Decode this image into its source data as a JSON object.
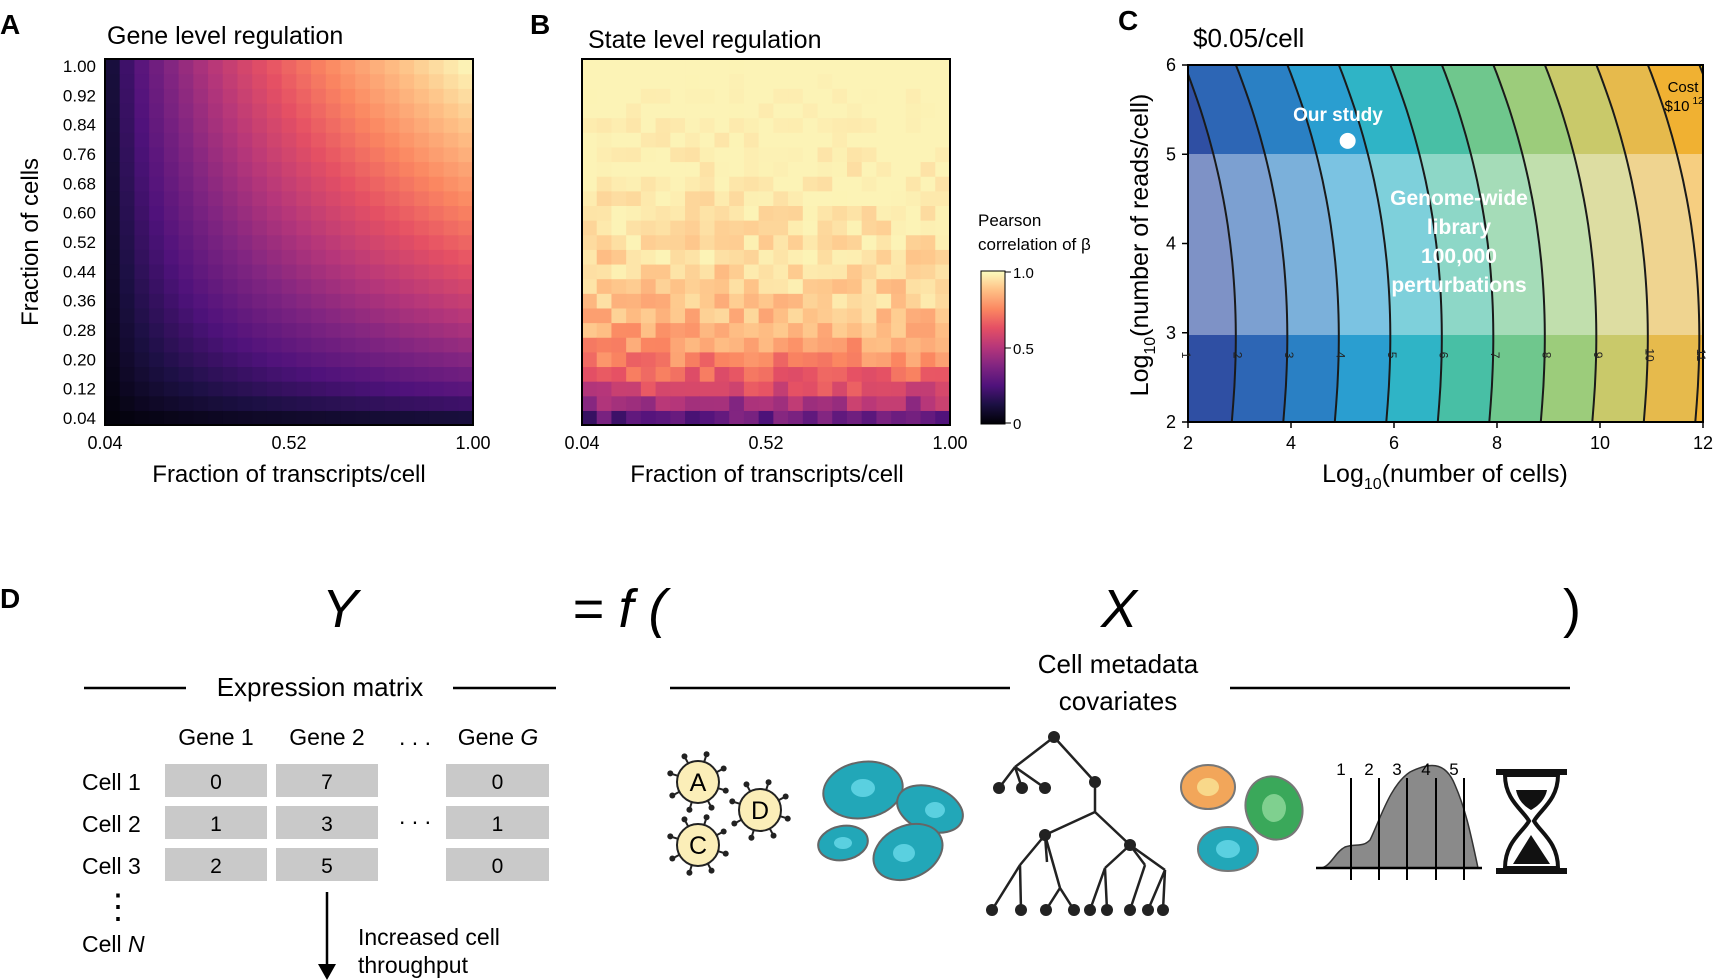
{
  "panels": {
    "A": {
      "letter": "A",
      "title": "Gene level regulation"
    },
    "B": {
      "letter": "B",
      "title": "State level regulation"
    },
    "C": {
      "letter": "C",
      "title": "$0.05/cell"
    },
    "D": {
      "letter": "D"
    }
  },
  "chart_data": [
    {
      "type": "heatmap",
      "panel": "A",
      "title": "Gene level regulation",
      "xlabel": "Fraction of transcripts/cell",
      "ylabel": "Fraction of cells",
      "x_ticks": [
        "0.04",
        "0.52",
        "1.00"
      ],
      "y_ticks": [
        "1.00",
        "0.92",
        "0.84",
        "0.76",
        "0.68",
        "0.60",
        "0.52",
        "0.44",
        "0.36",
        "0.28",
        "0.20",
        "0.12",
        "0.04"
      ],
      "x_range": [
        0.04,
        1.0
      ],
      "y_range": [
        0.04,
        1.0
      ],
      "grid_size": 25,
      "colormap": "magma",
      "value_range": [
        0,
        1.0
      ],
      "pattern": "correlation increases with both fraction of transcripts and fraction of cells; near 0 at (0.04,0.04), ~1.0 at (1.00,1.00)"
    },
    {
      "type": "heatmap",
      "panel": "B",
      "title": "State level regulation",
      "xlabel": "Fraction of transcripts/cell",
      "ylabel": "Fraction of cells",
      "x_ticks": [
        "0.04",
        "0.52",
        "1.00"
      ],
      "x_range": [
        0.04,
        1.0
      ],
      "y_range": [
        0.04,
        1.0
      ],
      "grid_size": 25,
      "colormap": "magma",
      "value_range": [
        0,
        1.0
      ],
      "pattern": "correlation mostly determined by fraction of cells; high (>0.9) above ~0.5 fraction of cells, dropping to ~0.3 at lowest fraction",
      "colorbar": {
        "label_line1": "Pearson",
        "label_line2": "correlation of β",
        "ticks": [
          "1.0",
          "0.5",
          "0"
        ]
      }
    },
    {
      "type": "heatmap",
      "panel": "C",
      "title": "$0.05/cell",
      "xlabel": "Log10(number of cells)",
      "ylabel": "Log10(number of reads/cell)",
      "x_ticks": [
        "2",
        "4",
        "6",
        "8",
        "10",
        "12"
      ],
      "y_ticks": [
        "2",
        "3",
        "4",
        "5",
        "6"
      ],
      "xlim": [
        2,
        12
      ],
      "ylim": [
        2,
        6
      ],
      "contour_labels": [
        "1",
        "2",
        "3",
        "4",
        "5",
        "6",
        "7",
        "8",
        "9",
        "10",
        "11"
      ],
      "cost_label": "Cost",
      "cost_value": "$10",
      "cost_exponent": "12",
      "study_point": {
        "x": 5.1,
        "y": 5.15,
        "label": "Our study"
      },
      "highlight_box": {
        "x": [
          2,
          12
        ],
        "y": [
          3,
          5
        ],
        "label": [
          "Genome-wide",
          "library",
          "100,000",
          "perturbations"
        ]
      }
    }
  ],
  "panel_d": {
    "Y": "Y",
    "eq": "= f (",
    "X": "X",
    "close": ")",
    "expr_label": "Expression matrix",
    "meta_label_1": "Cell metadata",
    "meta_label_2": "covariates",
    "gene_headers": [
      "Gene 1",
      "Gene 2",
      "Gene G"
    ],
    "gene_g_prefix": "Gene ",
    "gene_g_var": "G",
    "ellipsis": ". . .",
    "cell_rows": [
      {
        "label": "Cell 1",
        "values": [
          "0",
          "7",
          "0"
        ]
      },
      {
        "label": "Cell 2",
        "values": [
          "1",
          "3",
          "1"
        ]
      },
      {
        "label": "Cell 3",
        "values": [
          "2",
          "5",
          "0"
        ]
      }
    ],
    "cell_n_prefix": "Cell ",
    "cell_n_var": "N",
    "vdots": "⋮",
    "throughput_1": "Increased cell",
    "throughput_2": "throughput",
    "antigen_labels": [
      "A",
      "D",
      "C"
    ],
    "density_ticks": [
      "1",
      "2",
      "3",
      "4",
      "5"
    ],
    "colors": {
      "cell_teal": "#22a7b8",
      "cell_teal_inner": "#5ad0e0",
      "cell_orange": "#f2a65a",
      "cell_green": "#3aa85a",
      "antigen_fill": "#fbeeb8",
      "matrix_cell": "#c9c9c9",
      "density": "#8a8a8a"
    }
  }
}
